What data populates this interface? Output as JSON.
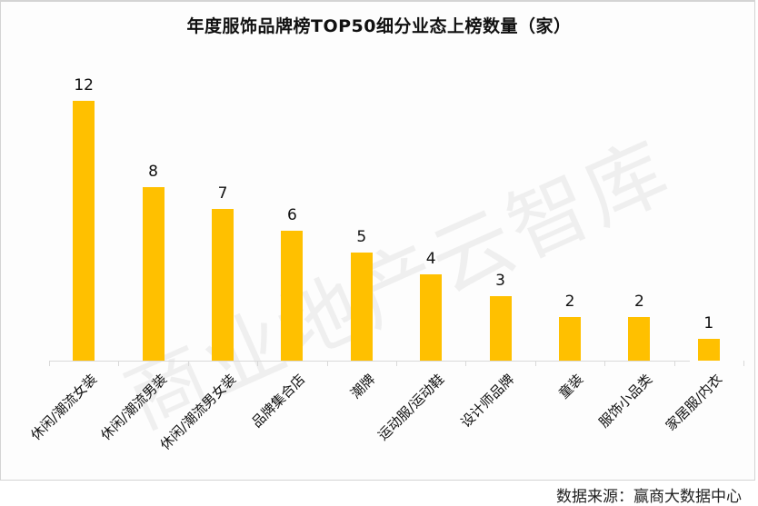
{
  "chart_data": {
    "type": "bar",
    "title": "年度服饰品牌榜TOP50细分业态上榜数量（家）",
    "categories": [
      "休闲/潮流女装",
      "休闲/潮流男装",
      "休闲/潮流男女装",
      "品牌集合店",
      "潮牌",
      "运动服/运动鞋",
      "设计师品牌",
      "童装",
      "服饰小品类",
      "家居服/内衣"
    ],
    "values": [
      12,
      8,
      7,
      6,
      5,
      4,
      3,
      2,
      2,
      1
    ],
    "xlabel": "",
    "ylabel": "",
    "ylim": [
      0,
      12
    ],
    "grid": false,
    "legend": null,
    "data_labels": true,
    "bar_color": "#ffc000"
  },
  "watermark": "商业地产云智库",
  "source": "数据来源：赢商大数据中心"
}
